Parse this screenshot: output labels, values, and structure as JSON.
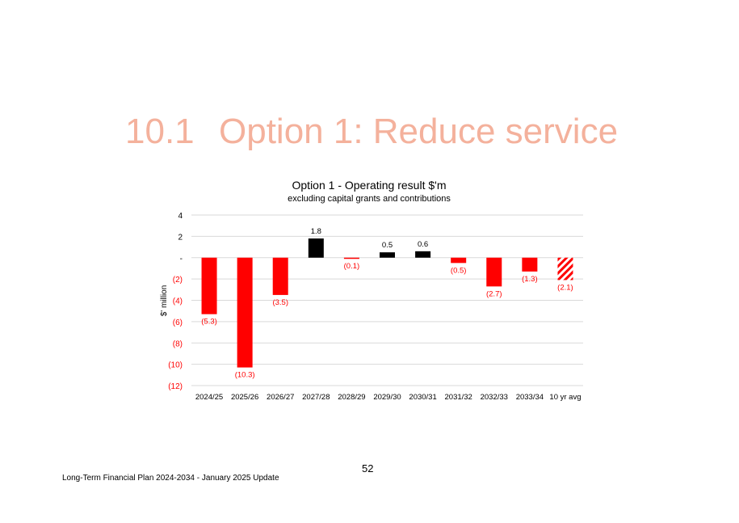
{
  "heading": {
    "number": "10.1",
    "title": "Option 1: Reduce service"
  },
  "chart_data": {
    "type": "bar",
    "title": "Option 1 - Operating result $'m",
    "subtitle": "excluding capital grants and contributions",
    "xlabel": "",
    "ylabel": "$' million",
    "ylim": [
      -12,
      4
    ],
    "yticks": [
      4,
      2,
      0,
      -2,
      -4,
      -6,
      -8,
      -10,
      -12
    ],
    "ytick_labels": [
      "4",
      "2",
      "-",
      "(2)",
      "(4)",
      "(6)",
      "(8)",
      "(10)",
      "(12)"
    ],
    "categories": [
      "2024/25",
      "2025/26",
      "2026/27",
      "2027/28",
      "2028/29",
      "2029/30",
      "2030/31",
      "2031/32",
      "2032/33",
      "2033/34",
      "10 yr avg"
    ],
    "values": [
      -5.3,
      -10.3,
      -3.5,
      1.8,
      -0.1,
      0.5,
      0.6,
      -0.5,
      -2.7,
      -1.3,
      -2.1
    ],
    "data_labels": [
      "(5.3)",
      "(10.3)",
      "(3.5)",
      "1.8",
      "(0.1)",
      "0.5",
      "0.6",
      "(0.5)",
      "(2.7)",
      "(1.3)",
      "(2.1)"
    ],
    "hatched_category": "10 yr avg",
    "grid": true,
    "colors": {
      "negative": "#ff0000",
      "positive": "#000000",
      "axis_text": "#ff0000",
      "grid": "#d9d9d9"
    }
  },
  "page_number": "52",
  "footer": "Long-Term Financial Plan 2024-2034 - January 2025 Update"
}
